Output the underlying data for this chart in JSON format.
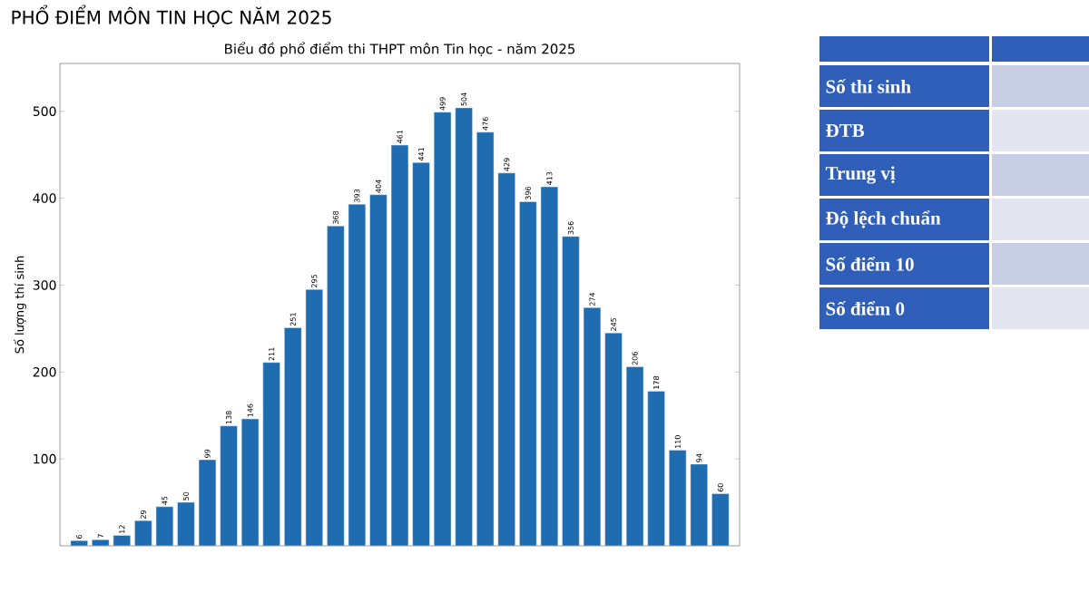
{
  "chart_data": [
    {
      "type": "bar",
      "title": "Biểu đồ phổ điểm thi THPT môn Tin học - năm 2025",
      "ylabel": "Số lượng thí sinh",
      "annotations": [
        "PHỔ ĐIỂM MÔN TIN HỌC NĂM 2025"
      ],
      "categories": [
        null,
        null,
        null,
        null,
        null,
        null,
        null,
        null,
        null,
        null,
        null,
        null,
        null,
        null,
        null,
        null,
        null,
        null,
        null,
        null,
        null,
        null,
        null,
        null,
        null,
        null,
        null,
        null,
        null,
        null,
        null
      ],
      "values": [
        6,
        7,
        12,
        29,
        45,
        50,
        99,
        138,
        146,
        211,
        251,
        295,
        368,
        393,
        404,
        461,
        441,
        499,
        504,
        476,
        429,
        396,
        413,
        356,
        274,
        245,
        206,
        178,
        110,
        94,
        60
      ],
      "color": "#1f6db0",
      "ylim": [
        0,
        555
      ],
      "yticks": [
        100,
        200,
        300,
        400,
        500
      ],
      "data_labels": true
    },
    {
      "type": "other",
      "annotations": [
        "Số thí sinh",
        "ĐTB",
        "Trung vị",
        "Độ lệch chuẩn",
        "Số điểm 10",
        "Số điểm 0"
      ]
    }
  ]
}
